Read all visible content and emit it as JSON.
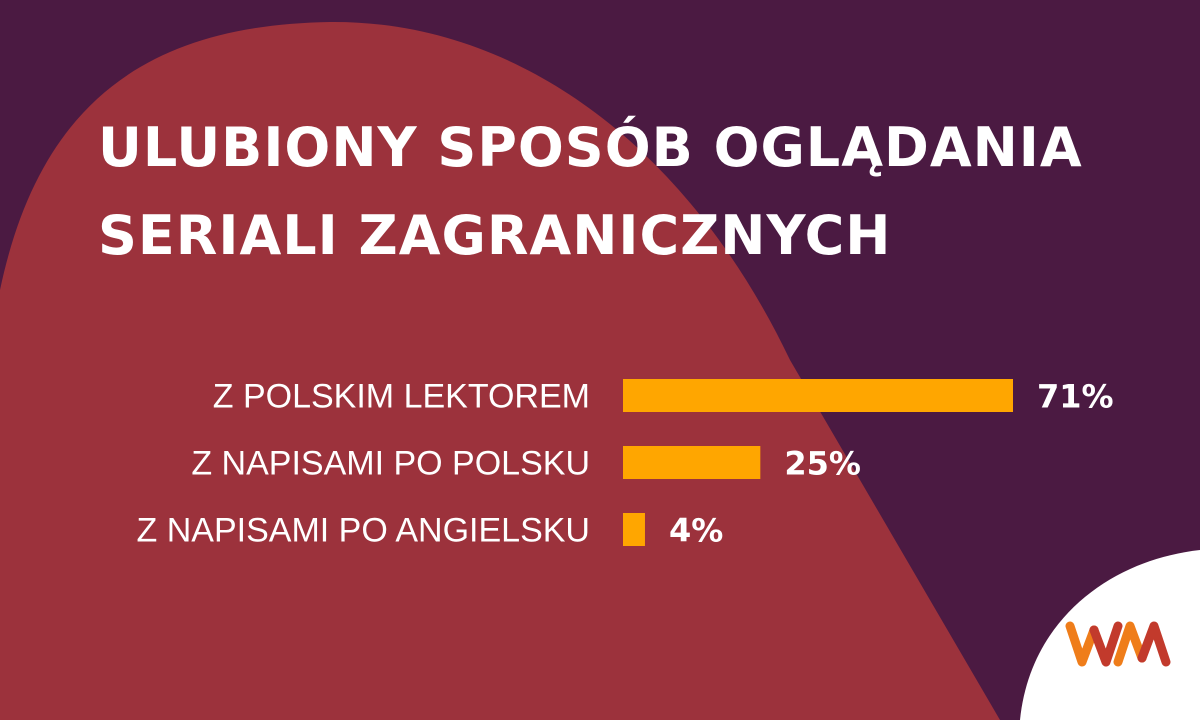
{
  "title": {
    "line1": "ULUBIONY SPOSÓB OGLĄDANIA",
    "line2": "SERIALI ZAGRANICZNYCH"
  },
  "colors": {
    "background": "#4b1a42",
    "arch": "#9c323c",
    "bar": "#ffa600",
    "text": "#ffffff",
    "logo_orange": "#ef7d1a",
    "logo_red": "#c23a2c"
  },
  "logo": {
    "text": "WM"
  },
  "chart_data": {
    "type": "bar",
    "orientation": "horizontal",
    "categories": [
      "Z POLSKIM LEKTOREM",
      "Z NAPISAMI PO POLSKU",
      "Z NAPISAMI PO ANGIELSKU"
    ],
    "values": [
      71,
      25,
      4
    ],
    "labels": [
      "71%",
      "25%",
      "4%"
    ],
    "unit": "%",
    "xlim": [
      0,
      71
    ],
    "grid": false,
    "legend": "none"
  }
}
